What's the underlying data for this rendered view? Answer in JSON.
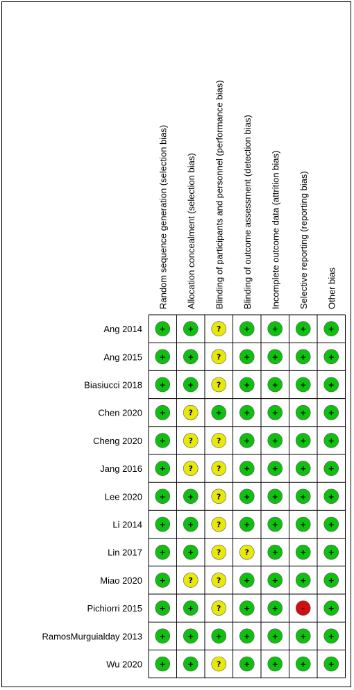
{
  "chart_data": {
    "type": "table",
    "columns": [
      "Random sequence generation (selection bias)",
      "Allocation concealment (selection bias)",
      "Blinding of participants and personnel (performance bias)",
      "Blinding of outcome assessment (detection bias)",
      "Incomplete outcome data (attrition bias)",
      "Selective reporting (reporting bias)",
      "Other bias"
    ],
    "rows": [
      "Ang 2014",
      "Ang 2015",
      "Biasiucci 2018",
      "Chen 2020",
      "Cheng 2020",
      "Jang 2016",
      "Lee 2020",
      "Li 2014",
      "Lin 2017",
      "Miao 2020",
      "Pichiorri 2015",
      "RamosMurguialday 2013",
      "Wu 2020"
    ],
    "judgements": [
      [
        "low",
        "low",
        "unclear",
        "low",
        "low",
        "low",
        "low"
      ],
      [
        "low",
        "low",
        "unclear",
        "low",
        "low",
        "low",
        "low"
      ],
      [
        "low",
        "low",
        "unclear",
        "low",
        "low",
        "low",
        "low"
      ],
      [
        "low",
        "unclear",
        "low",
        "low",
        "low",
        "low",
        "low"
      ],
      [
        "low",
        "unclear",
        "unclear",
        "low",
        "low",
        "low",
        "low"
      ],
      [
        "low",
        "unclear",
        "unclear",
        "low",
        "low",
        "low",
        "low"
      ],
      [
        "low",
        "low",
        "unclear",
        "low",
        "low",
        "low",
        "low"
      ],
      [
        "low",
        "low",
        "unclear",
        "low",
        "low",
        "low",
        "low"
      ],
      [
        "low",
        "low",
        "unclear",
        "unclear",
        "low",
        "low",
        "low"
      ],
      [
        "low",
        "unclear",
        "unclear",
        "low",
        "low",
        "low",
        "low"
      ],
      [
        "low",
        "low",
        "unclear",
        "low",
        "low",
        "high",
        "low"
      ],
      [
        "low",
        "low",
        "low",
        "low",
        "low",
        "low",
        "low"
      ],
      [
        "low",
        "low",
        "unclear",
        "low",
        "low",
        "low",
        "low"
      ]
    ],
    "symbols": {
      "low": "+",
      "unclear": "?",
      "high": "-"
    },
    "colors": {
      "low": "#10c010",
      "unclear": "#e8e80a",
      "high": "#d01010"
    }
  }
}
